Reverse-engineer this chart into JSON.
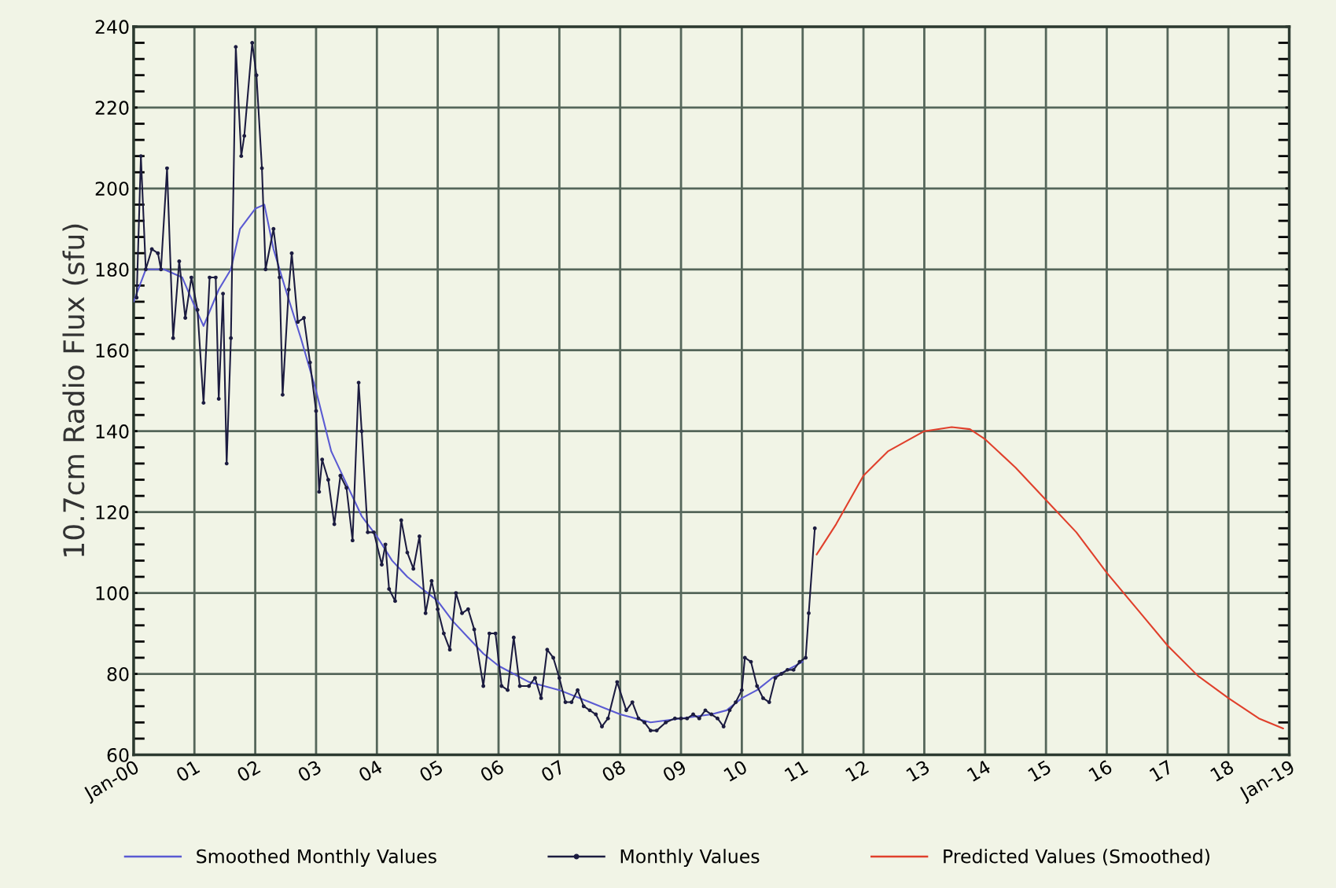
{
  "chart_data": {
    "type": "line",
    "ylabel": "10.7cm Radio Flux (sfu)",
    "xlim": [
      2000,
      2019
    ],
    "xticks": [
      {
        "value": 2000,
        "label": "Jan-00"
      },
      {
        "value": 2001,
        "label": "01"
      },
      {
        "value": 2002,
        "label": "02"
      },
      {
        "value": 2003,
        "label": "03"
      },
      {
        "value": 2004,
        "label": "04"
      },
      {
        "value": 2005,
        "label": "05"
      },
      {
        "value": 2006,
        "label": "06"
      },
      {
        "value": 2007,
        "label": "07"
      },
      {
        "value": 2008,
        "label": "08"
      },
      {
        "value": 2009,
        "label": "09"
      },
      {
        "value": 2010,
        "label": "10"
      },
      {
        "value": 2011,
        "label": "11"
      },
      {
        "value": 2012,
        "label": "12"
      },
      {
        "value": 2013,
        "label": "13"
      },
      {
        "value": 2014,
        "label": "14"
      },
      {
        "value": 2015,
        "label": "15"
      },
      {
        "value": 2016,
        "label": "16"
      },
      {
        "value": 2017,
        "label": "17"
      },
      {
        "value": 2018,
        "label": "18"
      },
      {
        "value": 2019,
        "label": "Jan-19"
      }
    ],
    "ylim": [
      60,
      240
    ],
    "yticks": [
      60,
      80,
      100,
      120,
      140,
      160,
      180,
      200,
      220,
      240
    ],
    "grid": true,
    "legend": "bottom",
    "line_style": "solid",
    "series": [
      {
        "name": "Smoothed Monthly Values",
        "color": "#5a5ad2",
        "marker": "none",
        "x": [
          2000.0,
          2000.2,
          2000.5,
          2000.8,
          2001.0,
          2001.15,
          2001.4,
          2001.6,
          2001.75,
          2002.0,
          2002.15,
          2002.3,
          2002.5,
          2002.75,
          2003.0,
          2003.25,
          2003.5,
          2003.75,
          2004.0,
          2004.25,
          2004.5,
          2004.75,
          2005.0,
          2005.25,
          2005.5,
          2005.75,
          2006.0,
          2006.5,
          2007.0,
          2007.5,
          2008.0,
          2008.5,
          2009.0,
          2009.5,
          2009.75,
          2010.0,
          2010.25,
          2010.5,
          2010.75,
          2011.0
        ],
        "values": [
          172,
          180,
          180,
          178,
          171,
          166,
          175,
          180,
          190,
          195,
          196,
          185,
          175,
          163,
          150,
          135,
          127,
          119,
          114,
          108,
          104,
          101,
          98,
          93,
          89,
          85,
          82,
          78,
          76,
          73,
          70,
          68,
          69,
          70,
          71,
          74,
          76,
          79,
          81,
          83
        ]
      },
      {
        "name": "Monthly Values",
        "color": "#1c1c40",
        "marker": "circle",
        "x": [
          2000.05,
          2000.12,
          2000.2,
          2000.3,
          2000.4,
          2000.45,
          2000.55,
          2000.65,
          2000.75,
          2000.85,
          2000.95,
          2001.05,
          2001.15,
          2001.25,
          2001.35,
          2001.4,
          2001.47,
          2001.53,
          2001.6,
          2001.68,
          2001.77,
          2001.82,
          2001.95,
          2002.02,
          2002.11,
          2002.17,
          2002.3,
          2002.4,
          2002.45,
          2002.55,
          2002.6,
          2002.7,
          2002.8,
          2002.9,
          2003.0,
          2003.05,
          2003.1,
          2003.2,
          2003.3,
          2003.4,
          2003.5,
          2003.6,
          2003.7,
          2003.75,
          2003.85,
          2003.95,
          2004.08,
          2004.14,
          2004.2,
          2004.3,
          2004.4,
          2004.5,
          2004.6,
          2004.7,
          2004.8,
          2004.9,
          2005.0,
          2005.1,
          2005.2,
          2005.3,
          2005.4,
          2005.5,
          2005.6,
          2005.75,
          2005.85,
          2005.95,
          2006.05,
          2006.15,
          2006.25,
          2006.35,
          2006.5,
          2006.6,
          2006.7,
          2006.8,
          2006.9,
          2007.0,
          2007.1,
          2007.2,
          2007.3,
          2007.4,
          2007.5,
          2007.6,
          2007.7,
          2007.8,
          2007.95,
          2008.1,
          2008.2,
          2008.3,
          2008.4,
          2008.5,
          2008.6,
          2008.75,
          2008.9,
          2009.0,
          2009.1,
          2009.2,
          2009.3,
          2009.4,
          2009.5,
          2009.6,
          2009.7,
          2009.8,
          2009.9,
          2010.0,
          2010.05,
          2010.15,
          2010.25,
          2010.35,
          2010.45,
          2010.55,
          2010.65,
          2010.75,
          2010.85,
          2010.95,
          2011.05,
          2011.1,
          2011.2
        ],
        "values": [
          173,
          208,
          180,
          185,
          184,
          180,
          205,
          163,
          182,
          168,
          178,
          170,
          147,
          178,
          178,
          148,
          174,
          132,
          163,
          235,
          208,
          213,
          236,
          228,
          205,
          180,
          190,
          178,
          149,
          175,
          184,
          167,
          168,
          157,
          145,
          125,
          133,
          128,
          117,
          129,
          126,
          113,
          152,
          140,
          115,
          115,
          107,
          112,
          101,
          98,
          118,
          110,
          106,
          114,
          95,
          103,
          96,
          90,
          86,
          100,
          95,
          96,
          91,
          77,
          90,
          90,
          77,
          76,
          89,
          77,
          77,
          79,
          74,
          86,
          84,
          79,
          73,
          73,
          76,
          72,
          71,
          70,
          67,
          69,
          78,
          71,
          73,
          69,
          68,
          66,
          66,
          68,
          69,
          69,
          69,
          70,
          69,
          71,
          70,
          69,
          67,
          71,
          73,
          76,
          84,
          83,
          77,
          74,
          73,
          79,
          80,
          81,
          81,
          83,
          84,
          95,
          116
        ]
      },
      {
        "name": "Predicted Values (Smoothed)",
        "color": "#e0402c",
        "marker": "none",
        "x": [
          2011.23,
          2011.55,
          2012.0,
          2012.4,
          2013.0,
          2013.45,
          2013.75,
          2014.0,
          2014.5,
          2015.0,
          2015.5,
          2016.0,
          2016.5,
          2017.0,
          2017.5,
          2018.0,
          2018.5,
          2018.9
        ],
        "values": [
          109.5,
          117,
          129,
          135,
          140,
          141,
          140.5,
          138,
          131,
          123,
          115,
          105,
          96,
          87,
          79.5,
          74,
          69,
          66.5
        ]
      }
    ]
  }
}
